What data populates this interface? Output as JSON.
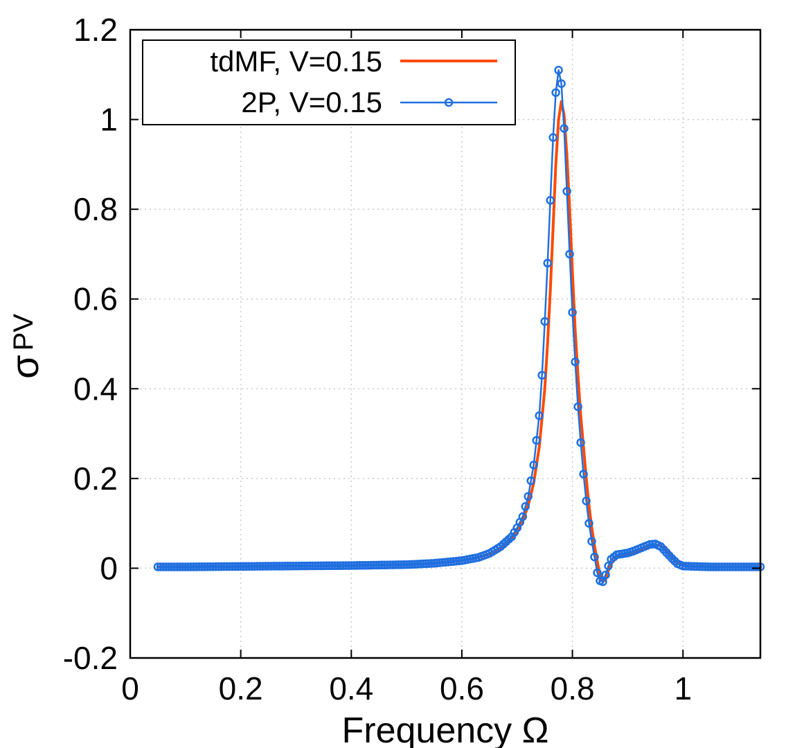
{
  "chart_data": {
    "type": "line",
    "xlabel": "Frequency  Ω",
    "ylabel_main": "σ",
    "ylabel_sub": "PV",
    "xlim": [
      0,
      1.14
    ],
    "ylim": [
      -0.2,
      1.2
    ],
    "xticks": [
      0,
      0.2,
      0.4,
      0.6,
      0.8,
      1
    ],
    "xtick_labels": [
      "0",
      "0.2",
      "0.4",
      "0.6",
      "0.8",
      "1"
    ],
    "yticks": [
      -0.2,
      0,
      0.2,
      0.4,
      0.6,
      0.8,
      1,
      1.2
    ],
    "ytick_labels": [
      "-0.2",
      "0",
      "0.2",
      "0.4",
      "0.6",
      "0.8",
      "1",
      "1.2"
    ],
    "grid": true,
    "legend_position": "top-left",
    "series": [
      {
        "name": "tdMF, V=0.15",
        "color": "#ff4a00",
        "style": "line",
        "x": [
          0.05,
          0.1,
          0.2,
          0.3,
          0.4,
          0.5,
          0.55,
          0.6,
          0.63,
          0.65,
          0.67,
          0.69,
          0.7,
          0.71,
          0.72,
          0.73,
          0.74,
          0.75,
          0.755,
          0.76,
          0.765,
          0.77,
          0.775,
          0.78,
          0.785,
          0.79,
          0.795,
          0.8,
          0.805,
          0.81,
          0.815,
          0.82,
          0.825,
          0.83,
          0.835,
          0.84,
          0.845,
          0.85,
          0.855,
          0.86,
          0.865,
          0.87,
          0.88,
          0.89,
          0.9,
          0.91,
          0.92,
          0.93,
          0.94,
          0.95,
          0.96,
          0.97,
          0.98,
          0.99,
          1.0,
          1.02,
          1.05,
          1.1,
          1.14
        ],
        "values": [
          0.003,
          0.003,
          0.004,
          0.005,
          0.006,
          0.008,
          0.011,
          0.017,
          0.024,
          0.032,
          0.045,
          0.065,
          0.082,
          0.105,
          0.14,
          0.19,
          0.27,
          0.4,
          0.5,
          0.62,
          0.76,
          0.9,
          1.0,
          1.04,
          1.01,
          0.92,
          0.8,
          0.66,
          0.53,
          0.43,
          0.34,
          0.27,
          0.2,
          0.14,
          0.09,
          0.05,
          0.015,
          -0.015,
          -0.03,
          -0.025,
          -0.005,
          0.01,
          0.025,
          0.03,
          0.03,
          0.035,
          0.04,
          0.045,
          0.05,
          0.052,
          0.05,
          0.04,
          0.025,
          0.012,
          0.006,
          0.004,
          0.003,
          0.003,
          0.003
        ]
      },
      {
        "name": "2P, V=0.15",
        "color": "#1f6fe0",
        "style": "line-markers",
        "x": [
          0.05,
          0.1,
          0.2,
          0.3,
          0.4,
          0.5,
          0.55,
          0.6,
          0.63,
          0.65,
          0.67,
          0.69,
          0.7,
          0.71,
          0.72,
          0.73,
          0.74,
          0.745,
          0.75,
          0.755,
          0.76,
          0.765,
          0.77,
          0.775,
          0.78,
          0.785,
          0.79,
          0.795,
          0.8,
          0.805,
          0.81,
          0.815,
          0.82,
          0.825,
          0.83,
          0.835,
          0.84,
          0.845,
          0.85,
          0.855,
          0.86,
          0.865,
          0.87,
          0.88,
          0.89,
          0.9,
          0.91,
          0.92,
          0.93,
          0.94,
          0.95,
          0.96,
          0.97,
          0.98,
          0.99,
          1.0,
          1.02,
          1.05,
          1.1,
          1.14
        ],
        "values": [
          0.003,
          0.003,
          0.004,
          0.005,
          0.006,
          0.008,
          0.011,
          0.017,
          0.024,
          0.033,
          0.048,
          0.07,
          0.09,
          0.115,
          0.16,
          0.23,
          0.34,
          0.43,
          0.55,
          0.68,
          0.82,
          0.96,
          1.06,
          1.11,
          1.08,
          0.98,
          0.84,
          0.7,
          0.57,
          0.46,
          0.36,
          0.28,
          0.21,
          0.15,
          0.1,
          0.06,
          0.025,
          -0.01,
          -0.028,
          -0.03,
          -0.015,
          0.005,
          0.02,
          0.03,
          0.032,
          0.034,
          0.038,
          0.043,
          0.048,
          0.053,
          0.054,
          0.048,
          0.035,
          0.022,
          0.01,
          0.005,
          0.004,
          0.003,
          0.003,
          0.003
        ]
      }
    ]
  }
}
